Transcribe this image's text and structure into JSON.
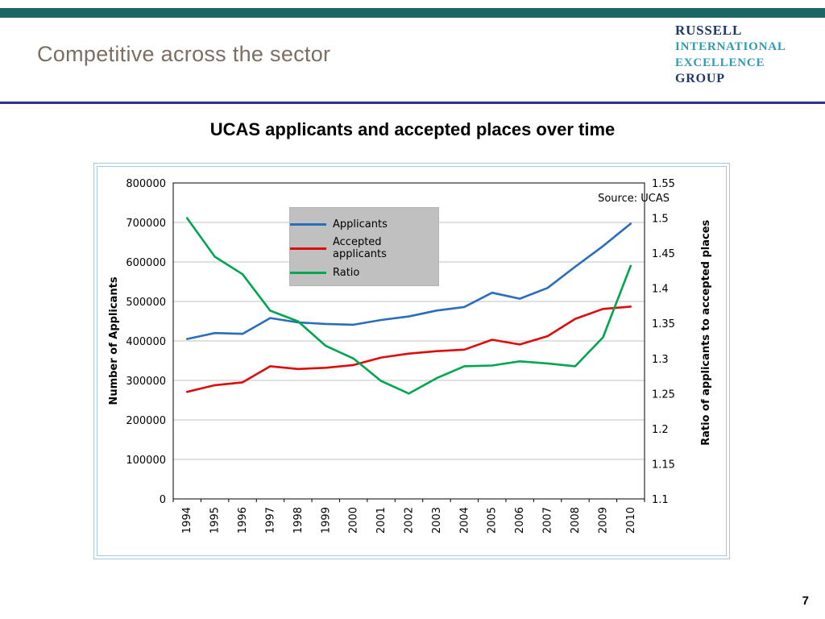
{
  "slide": {
    "title": "Competitive across the sector",
    "page_number": "7"
  },
  "logo": {
    "line1": "RUSSELL",
    "line2": "INTERNATIONAL",
    "line3": "EXCELLENCE",
    "line4": "GROUP"
  },
  "chart": {
    "title": "UCAS applicants and accepted places over time",
    "source": "Source: UCAS",
    "y_left_label": "Number of Applicants",
    "y_right_label": "Ratio of applicants to accepted places"
  },
  "chart_data": {
    "type": "line",
    "title": "UCAS applicants and accepted places over time",
    "x": [
      1994,
      1995,
      1996,
      1997,
      1998,
      1999,
      2000,
      2001,
      2002,
      2003,
      2004,
      2005,
      2006,
      2007,
      2008,
      2009,
      2010
    ],
    "series": [
      {
        "name": "Applicants",
        "axis": "left",
        "color": "#2a6ebb",
        "values": [
          405000,
          420000,
          418000,
          458000,
          447000,
          443000,
          441000,
          453000,
          462000,
          477000,
          486000,
          522000,
          507000,
          534000,
          588000,
          640000,
          697000
        ]
      },
      {
        "name": "Accepted applicants",
        "axis": "left",
        "color": "#dd0c0c",
        "values": [
          271000,
          288000,
          295000,
          336000,
          329000,
          332000,
          339000,
          358000,
          368000,
          374000,
          378000,
          403000,
          391000,
          412000,
          456000,
          481000,
          487000
        ]
      },
      {
        "name": "Ratio",
        "axis": "right",
        "color": "#00a550",
        "values": [
          1.5,
          1.445,
          1.42,
          1.368,
          1.353,
          1.318,
          1.3,
          1.268,
          1.25,
          1.272,
          1.289,
          1.29,
          1.296,
          1.293,
          1.289,
          1.33,
          1.432
        ]
      }
    ],
    "left_axis": {
      "min": 0,
      "max": 800000,
      "step": 100000,
      "label": "Number of Applicants"
    },
    "right_axis": {
      "min": 1.1,
      "max": 1.55,
      "step": 0.05,
      "label": "Ratio of applicants to accepted places"
    },
    "grid": "horizontal",
    "legend_position": "inside-top-left",
    "source": "Source: UCAS"
  }
}
